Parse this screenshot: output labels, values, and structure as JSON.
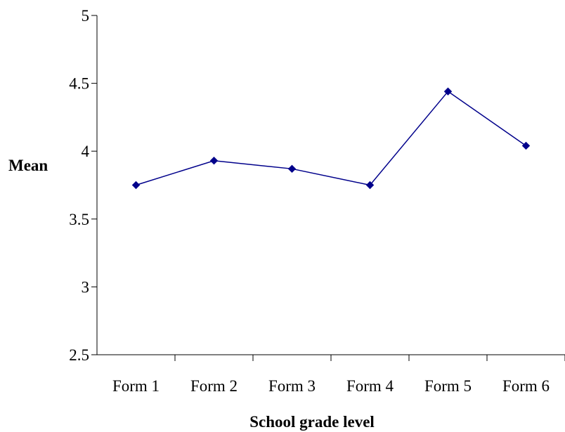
{
  "chart_data": {
    "type": "line",
    "title": "",
    "xlabel": "School grade level",
    "ylabel": "Mean",
    "categories": [
      "Form 1",
      "Form 2",
      "Form 3",
      "Form 4",
      "Form 5",
      "Form 6"
    ],
    "series": [
      {
        "values": [
          3.75,
          3.93,
          3.87,
          3.75,
          4.44,
          4.04
        ],
        "color": "#00008B",
        "marker": "diamond"
      }
    ],
    "ylim": [
      2.5,
      5
    ],
    "yticks": [
      "2.5",
      "3",
      "3.5",
      "4",
      "4.5",
      "5"
    ],
    "grid": false,
    "legend": "none"
  }
}
